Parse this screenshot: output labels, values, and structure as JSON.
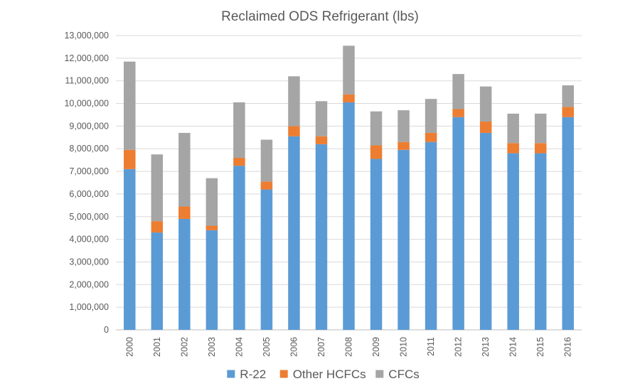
{
  "chart_data": {
    "type": "bar",
    "stacked": true,
    "title": "Reclaimed ODS Refrigerant (lbs)",
    "categories": [
      "2000",
      "2001",
      "2002",
      "2003",
      "2004",
      "2005",
      "2006",
      "2007",
      "2008",
      "2009",
      "2010",
      "2011",
      "2012",
      "2013",
      "2014",
      "2015",
      "2016"
    ],
    "series": [
      {
        "name": "R-22",
        "color": "#5B9BD5",
        "values": [
          7100000,
          4300000,
          4900000,
          4400000,
          7250000,
          6200000,
          8550000,
          8200000,
          10050000,
          7550000,
          7950000,
          8300000,
          9400000,
          8700000,
          7800000,
          7800000,
          9400000
        ]
      },
      {
        "name": "Other HCFCs",
        "color": "#ED7D31",
        "values": [
          850000,
          500000,
          550000,
          200000,
          350000,
          350000,
          450000,
          350000,
          350000,
          600000,
          350000,
          400000,
          350000,
          500000,
          450000,
          450000,
          450000
        ]
      },
      {
        "name": "CFCs",
        "color": "#A5A5A5",
        "values": [
          3900000,
          2950000,
          3250000,
          2100000,
          2450000,
          1850000,
          2200000,
          1550000,
          2150000,
          1500000,
          1400000,
          1500000,
          1550000,
          1550000,
          1300000,
          1300000,
          950000
        ]
      }
    ],
    "ylim": [
      0,
      13000000
    ],
    "ytick_step": 1000000,
    "ytick_labels": [
      "0",
      "1,000,000",
      "2,000,000",
      "3,000,000",
      "4,000,000",
      "5,000,000",
      "6,000,000",
      "7,000,000",
      "8,000,000",
      "9,000,000",
      "10,000,000",
      "11,000,000",
      "12,000,000",
      "13,000,000"
    ],
    "grid": true,
    "legend_position": "bottom"
  }
}
